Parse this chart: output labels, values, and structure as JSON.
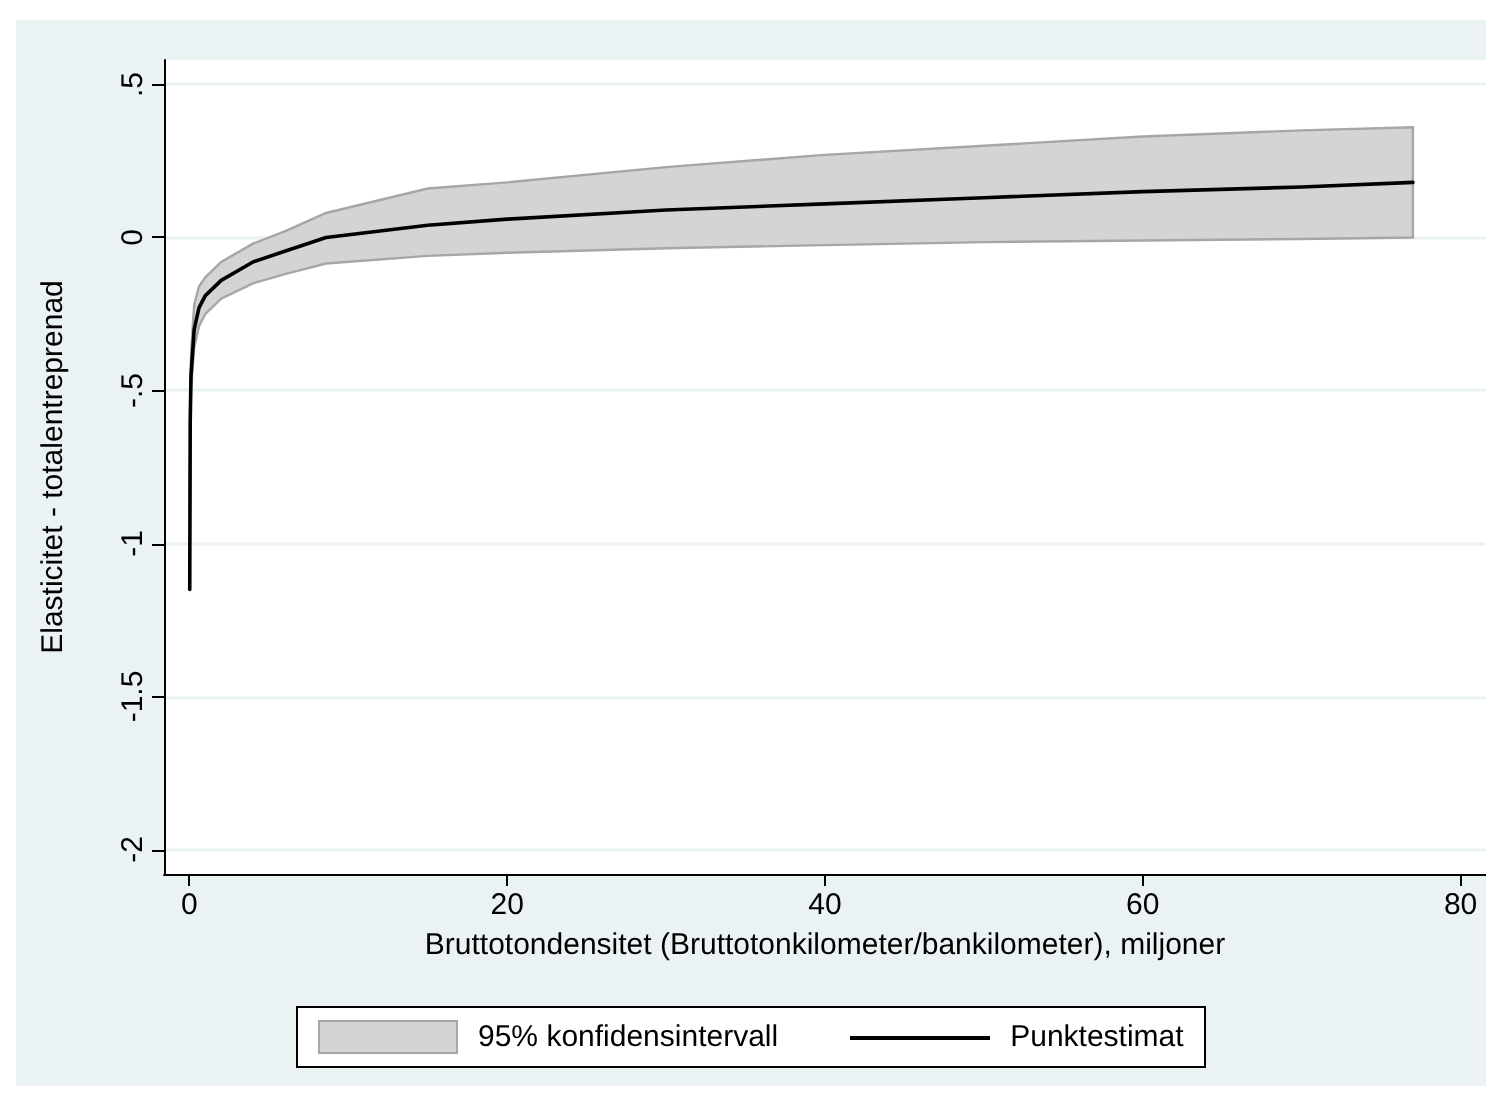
{
  "chart_data": {
    "type": "line",
    "xlabel": "Bruttotondensitet (Bruttotonkilometer/bankilometer), miljoner",
    "ylabel": "Elasticitet - totalentreprenad",
    "annotations": [
      "95% konfidensintervall"
    ],
    "x": [
      0.02,
      0.05,
      0.1,
      0.3,
      0.6,
      1,
      2,
      4,
      6,
      8.6,
      15,
      20,
      30,
      40,
      50,
      60,
      70,
      77
    ],
    "series": [
      {
        "name": "Punktestimat",
        "type": "line",
        "color": "#000000",
        "values": [
          -1.15,
          -0.6,
          -0.45,
          -0.3,
          -0.23,
          -0.19,
          -0.14,
          -0.08,
          -0.045,
          0,
          0.04,
          0.06,
          0.09,
          0.11,
          0.13,
          0.15,
          0.165,
          0.18
        ],
        "lower": [
          -1.15,
          -0.65,
          -0.5,
          -0.36,
          -0.29,
          -0.25,
          -0.2,
          -0.15,
          -0.12,
          -0.085,
          -0.06,
          -0.05,
          -0.035,
          -0.025,
          -0.015,
          -0.01,
          -0.005,
          0
        ],
        "upper": [
          -1.15,
          -0.5,
          -0.38,
          -0.22,
          -0.16,
          -0.13,
          -0.08,
          -0.02,
          0.02,
          0.08,
          0.16,
          0.18,
          0.23,
          0.27,
          0.3,
          0.33,
          0.35,
          0.36
        ]
      }
    ],
    "xlim": [
      -1.6,
      81.6
    ],
    "xticks": [
      0,
      20,
      40,
      60,
      80
    ],
    "ylim": [
      -2.08,
      0.58
    ],
    "yticks": [
      {
        "value": 0.5,
        "label": ".5"
      },
      {
        "value": 0,
        "label": "0"
      },
      {
        "value": -0.5,
        "label": "-.5"
      },
      {
        "value": -1,
        "label": "-1"
      },
      {
        "value": -1.5,
        "label": "-1.5"
      },
      {
        "value": -2,
        "label": "-2"
      }
    ],
    "grid": "y",
    "legend": "bottom",
    "marker": "none",
    "line_style": "solid"
  }
}
